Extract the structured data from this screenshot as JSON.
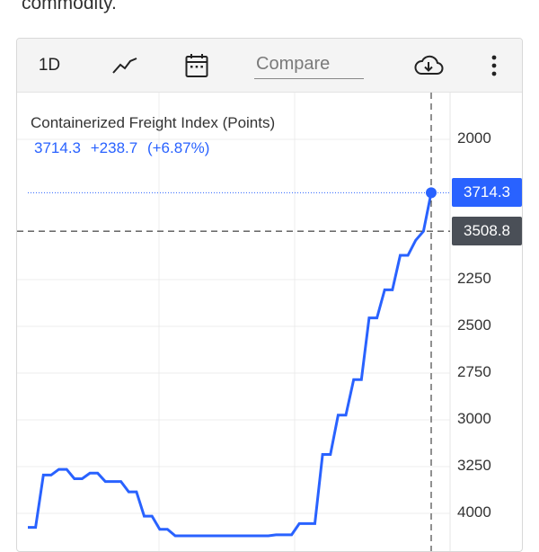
{
  "page": {
    "top_text": "commodity."
  },
  "toolbar": {
    "range_label": "1D",
    "line_icon": "line-chart-icon",
    "calendar_icon": "calendar-icon",
    "compare_placeholder": "Compare",
    "download_icon": "download-cloud-icon",
    "more_icon": "more-vertical-icon"
  },
  "chart": {
    "title": "Containerized Freight Index (Points)",
    "last_value": "3714.3",
    "change": "+238.7",
    "change_pct": "(+6.87%)",
    "last_tag": "3714.3",
    "crosshair_tag": "3508.8",
    "accent_color": "#2962ff",
    "crosshair_tag_color": "#4a4f57",
    "y_ticks": [
      "4000",
      "3250",
      "3000",
      "2750",
      "2500",
      "2250",
      "2000"
    ]
  },
  "chart_data": {
    "type": "line",
    "title": "Containerized Freight Index (Points)",
    "ylim": [
      1950,
      4150
    ],
    "y_ticks": [
      2000,
      2250,
      2500,
      2750,
      3000,
      3250,
      4000
    ],
    "grid": true,
    "series": [
      {
        "name": "Containerized Freight Index (Points)",
        "values": [
          1925,
          1925,
          2205,
          2205,
          2235,
          2235,
          2185,
          2185,
          2215,
          2215,
          2170,
          2170,
          2170,
          2115,
          2115,
          1985,
          1985,
          1915,
          1915,
          1880,
          1880,
          1880,
          1880,
          1880,
          1880,
          1880,
          1880,
          1880,
          1880,
          1880,
          1880,
          1880,
          1885,
          1885,
          1885,
          1945,
          1945,
          1945,
          2315,
          2315,
          2525,
          2525,
          2715,
          2715,
          3045,
          3045,
          3195,
          3195,
          3380,
          3380,
          3460,
          3508.8,
          3714.3
        ]
      }
    ]
  }
}
